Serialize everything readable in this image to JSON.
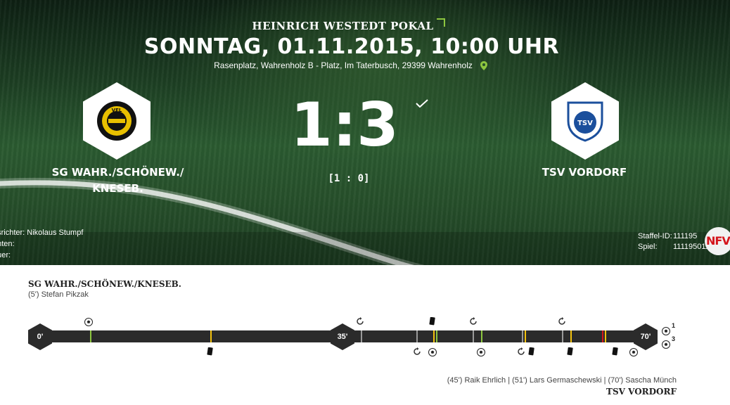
{
  "match": {
    "competition": "HEINRICH WESTEDT POKAL",
    "date_time": "SONNTAG, 01.11.2015, 10:00 UHR",
    "venue": "Rasenplatz, Wahrenholz B - Platz, Im Taterbusch, 29399 Wahrenholz",
    "score": "1:3",
    "halftime": "[1 : 0]",
    "status_icon": "checkmark-icon"
  },
  "home": {
    "name_line1": "SG WAHR./SCHÖNEW./",
    "name_line2": "KNESEB.",
    "logo_text": "VFL"
  },
  "away": {
    "name": "TSV VORDORF",
    "logo_text": "TSV"
  },
  "officials": {
    "referee": "dsrichter: Nikolaus Stumpf",
    "assistants": "enten:",
    "spectators": "auer:"
  },
  "ids": {
    "staffel_label": "Staffel-ID:",
    "staffel_value": "111195",
    "spiel_label": "Spiel:",
    "spiel_value": "111195011",
    "association_logo": "NFV"
  },
  "timeline": {
    "home_team": "SG WAHR./SCHÖNEW./KNESEB.",
    "home_scorers": "(5') Stefan Pikzak",
    "away_scorers": "(45') Raik Ehrlich | (51') Lars Germaschewski | (70') Sascha Münch",
    "away_team": "TSV VORDORF",
    "markers": [
      "0'",
      "35'",
      "70'"
    ],
    "home_goal_count": "1",
    "away_goal_count": "3"
  },
  "colors": {
    "accent_green": "#8dc63f",
    "card_yellow": "#f4c20d",
    "card_red": "#d4151c",
    "timeline_bar": "#2b2b2b"
  }
}
